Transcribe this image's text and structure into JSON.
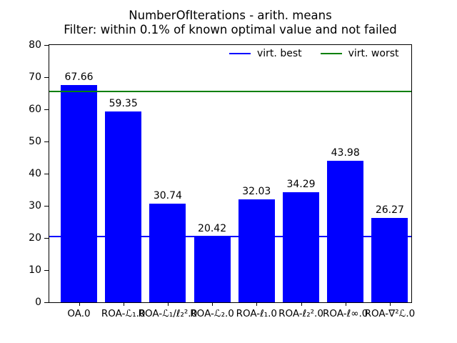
{
  "figure": {
    "title_line1": "NumberOfIterations - arith. means",
    "title_line2": "Filter: within 0.1% of known optimal value and not failed"
  },
  "legend": {
    "items": [
      {
        "label": "virt. best",
        "color": "#0000ff"
      },
      {
        "label": "virt. worst",
        "color": "#008000"
      }
    ]
  },
  "chart_data": {
    "type": "bar",
    "title": "NumberOfIterations - arith. means",
    "subtitle": "Filter: within 0.1% of known optimal value and not failed",
    "categories": [
      "OA.0",
      "ROA-ℒ₁.0",
      "ROA-ℒ₁/ℓ₂².0",
      "ROA-ℒ₂.0",
      "ROA-ℓ₁.0",
      "ROA-ℓ₂².0",
      "ROA-ℓ∞.0",
      "ROA-∇²ℒ.0"
    ],
    "values": [
      67.66,
      59.35,
      30.74,
      20.42,
      32.03,
      34.29,
      43.98,
      26.27
    ],
    "bar_color": "#0000ff",
    "xlabel": "",
    "ylabel": "",
    "ylim": [
      0,
      80
    ],
    "yticks": [
      0,
      10,
      20,
      30,
      40,
      50,
      60,
      70,
      80
    ],
    "grid": false,
    "legend_position": "upper right inside, horizontal",
    "hlines": [
      {
        "label": "virt. best",
        "value": 20.42,
        "color": "#0000ff"
      },
      {
        "label": "virt. worst",
        "value": 65.5,
        "color": "#008000"
      }
    ]
  }
}
